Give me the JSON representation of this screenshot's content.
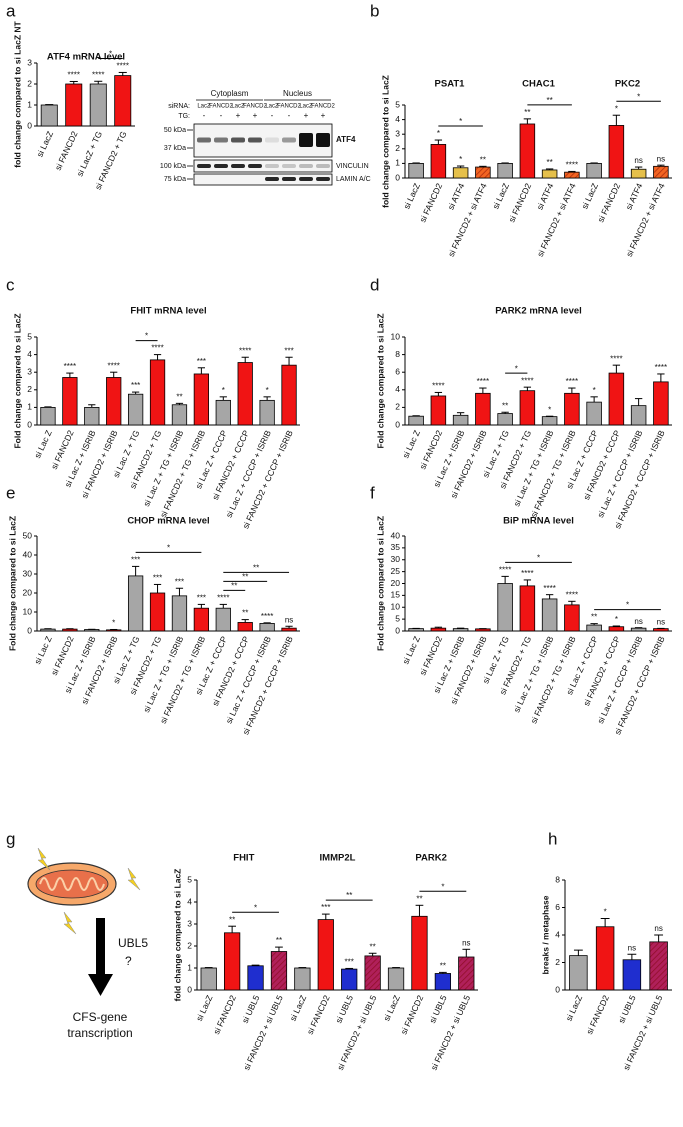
{
  "panel_labels": [
    "a",
    "b",
    "c",
    "d",
    "e",
    "f",
    "g",
    "h"
  ],
  "blot": {
    "compartments": [
      "Cytoplasm",
      "Nucleus"
    ],
    "sirna_label": "siRNA:",
    "tg_label": "TG:",
    "lanes": [
      "LacZ",
      "FANCD2",
      "LacZ",
      "FANCD2",
      "LacZ",
      "FANCD2",
      "LacZ",
      "FANCD2"
    ],
    "tg": [
      "-",
      "-",
      "+",
      "+",
      "-",
      "-",
      "+",
      "+"
    ],
    "markers": [
      "50 kDa",
      "37 kDa",
      "100 kDa",
      "75 kDa"
    ],
    "bands": [
      "ATF4",
      "VINCULIN",
      "LAMIN A/C"
    ]
  },
  "diagram": {
    "labels": [
      "UBL5",
      "?",
      "CFS-gene",
      "transcription"
    ]
  },
  "chart_data": [
    {
      "type": "bar",
      "title": "ATF4 mRNA level",
      "ylabel": "fold change compared to si LacZ NT",
      "categories": [
        "si LacZ",
        "si FANCD2",
        "si LacZ + TG",
        "si FANCD2 + TG"
      ],
      "values": [
        1,
        2.0,
        2.0,
        2.4
      ],
      "errors": [
        0.02,
        0.12,
        0.13,
        0.15
      ],
      "colors": [
        "#a6a6a6",
        "#f01414",
        "#a6a6a6",
        "#f01414"
      ],
      "hatched": [
        false,
        false,
        false,
        false
      ],
      "sig": [
        null,
        "****",
        "****",
        "****"
      ],
      "brackets": [
        {
          "from": 2,
          "to": 3,
          "label": "*"
        }
      ],
      "ylim": [
        0,
        3
      ],
      "yticks": [
        0,
        1,
        2,
        3
      ]
    },
    {
      "type": "bar",
      "groups": [
        "PSAT1",
        "CHAC1",
        "PKC2"
      ],
      "ylabel": "fold change compared to si LacZ",
      "categories": [
        "si LacZ",
        "si FANCD2",
        "si ATF4",
        "si FANCD2 + si ATF4",
        "si LacZ",
        "si FANCD2",
        "si ATF4",
        "si FANCD2 + si ATF4",
        "si LacZ",
        "si FANCD2",
        "si ATF4",
        "si FANCD2 + si ATF4"
      ],
      "values": [
        1,
        2.3,
        0.7,
        0.75,
        1,
        3.7,
        0.55,
        0.4,
        1,
        3.6,
        0.6,
        0.8
      ],
      "errors": [
        0.03,
        0.3,
        0.12,
        0.05,
        0.03,
        0.35,
        0.07,
        0.05,
        0.03,
        0.7,
        0.15,
        0.08
      ],
      "colors": [
        "#a6a6a6",
        "#f01414",
        "#e5c04b",
        "#f26522"
      ],
      "hatched": [
        false,
        false,
        false,
        true
      ],
      "sig": [
        null,
        "*",
        "*",
        "**",
        null,
        "**",
        "**",
        "****",
        null,
        "*",
        "ns",
        "ns"
      ],
      "brackets": [
        {
          "from": 1,
          "to": 3,
          "label": "*"
        },
        {
          "from": 5,
          "to": 7,
          "label": "**"
        },
        {
          "from": 9,
          "to": 11,
          "label": "*"
        }
      ],
      "ylim": [
        0,
        5
      ],
      "yticks": [
        0,
        1,
        2,
        3,
        4,
        5
      ]
    },
    {
      "type": "bar",
      "title": "FHIT mRNA level",
      "ylabel": "Fold change compared to si LacZ",
      "categories": [
        "si Lac Z",
        "si FANCD2",
        "si Lac Z + ISRIB",
        "si FANCD2 + ISRIB",
        "si Lac Z + TG",
        "si FANCD2 + TG",
        "si Lac Z + TG + ISRIB",
        "si FANCD2 + TG + ISRIB",
        "si Lac Z + CCCP",
        "si FANCD2 + CCCP",
        "si Lac Z + CCCP + ISRIB",
        "si FANCD2 + CCCP + ISRIB"
      ],
      "values": [
        1,
        2.7,
        1.0,
        2.7,
        1.75,
        3.7,
        1.15,
        2.9,
        1.4,
        3.55,
        1.4,
        3.4
      ],
      "errors": [
        0.03,
        0.25,
        0.15,
        0.3,
        0.12,
        0.3,
        0.08,
        0.35,
        0.2,
        0.3,
        0.2,
        0.45
      ],
      "colors": [
        "#a6a6a6",
        "#f01414"
      ],
      "hatched": [
        false,
        false
      ],
      "sig": [
        null,
        "****",
        null,
        "****",
        "***",
        "****",
        "**",
        "***",
        "*",
        "****",
        "*",
        "***"
      ],
      "brackets": [
        {
          "from": 4,
          "to": 5,
          "label": "*"
        }
      ],
      "ylim": [
        0,
        5
      ],
      "yticks": [
        0,
        1,
        2,
        3,
        4,
        5
      ]
    },
    {
      "type": "bar",
      "title": "PARK2 mRNA level",
      "ylabel": "Fold change compared to si LacZ",
      "categories": [
        "si Lac Z",
        "si FANCD2",
        "si Lac Z + ISRIB",
        "si FANCD2 + ISRIB",
        "si Lac Z + TG",
        "si FANCD2 + TG",
        "si Lac Z + TG + ISRIB",
        "si FANCD2 + TG + ISRIB",
        "si Lac Z + CCCP",
        "si FANCD2 + CCCP",
        "si Lac Z + CCCP + ISRIB",
        "si FANCD2 + CCCP + ISRIB"
      ],
      "values": [
        1,
        3.3,
        1.1,
        3.6,
        1.3,
        3.9,
        0.95,
        3.6,
        2.6,
        5.9,
        2.2,
        4.9
      ],
      "errors": [
        0.05,
        0.4,
        0.3,
        0.6,
        0.15,
        0.4,
        0.05,
        0.6,
        0.6,
        0.9,
        0.8,
        0.9
      ],
      "colors": [
        "#a6a6a6",
        "#f01414"
      ],
      "hatched": [
        false,
        false
      ],
      "sig": [
        null,
        "****",
        null,
        "****",
        "**",
        "****",
        "*",
        "****",
        "*",
        "****",
        null,
        "****"
      ],
      "brackets": [
        {
          "from": 4,
          "to": 5,
          "label": "*"
        }
      ],
      "ylim": [
        0,
        10
      ],
      "yticks": [
        0,
        2,
        4,
        6,
        8,
        10
      ]
    },
    {
      "type": "bar",
      "title": "CHOP mRNA level",
      "ylabel": "Fold change compared to si LacZ",
      "categories": [
        "si Lac Z",
        "si FANCD2",
        "si Lac Z + ISRIB",
        "si FANCD2 + ISRIB",
        "si Lac Z + TG",
        "si FANCD2 + TG",
        "si Lac Z + TG + ISRIB",
        "si FANCD2 + TG + ISRIB",
        "si Lac Z + CCCP",
        "si FANCD2 + CCCP",
        "si Lac Z + CCCP + ISRIB",
        "si FANCD2 + CCCP + ISRIB"
      ],
      "values": [
        1,
        1,
        0.8,
        0.6,
        29,
        20,
        18.5,
        12,
        12,
        4.5,
        4,
        1.5
      ],
      "errors": [
        0.2,
        0.2,
        0.1,
        0.2,
        5,
        4.5,
        4,
        2,
        2,
        1.5,
        0.3,
        1
      ],
      "colors": [
        "#a6a6a6",
        "#f01414"
      ],
      "hatched": [
        false,
        false
      ],
      "sig": [
        null,
        null,
        null,
        "*",
        "***",
        "***",
        "***",
        "***",
        "****",
        "**",
        "****",
        "ns"
      ],
      "brackets": [
        {
          "from": 4,
          "to": 7,
          "label": "*"
        },
        {
          "from": 8,
          "to": 9,
          "label": "**"
        },
        {
          "from": 8,
          "to": 10,
          "label": "**"
        },
        {
          "from": 8,
          "to": 11,
          "label": "**"
        }
      ],
      "ylim": [
        0,
        50
      ],
      "yticks": [
        0,
        10,
        20,
        30,
        40,
        50
      ]
    },
    {
      "type": "bar",
      "title": "BiP mRNA level",
      "ylabel": "Fold change compared to si LacZ",
      "categories": [
        "si Lac Z",
        "si FANCD2",
        "si Lac Z + ISRIB",
        "si FANCD2 + ISRIB",
        "si Lac Z + TG",
        "si FANCD2 + TG",
        "si Lac Z + TG + ISRIB",
        "si FANCD2 + TG + ISRIB",
        "si Lac Z + CCCP",
        "si FANCD2 + CCCP",
        "si Lac Z + CCCP + ISRIB",
        "si FANCD2 + CCCP + ISRIB"
      ],
      "values": [
        1,
        1.2,
        1,
        0.9,
        20,
        19,
        13.5,
        11,
        2.5,
        1.8,
        1.2,
        1
      ],
      "errors": [
        0.1,
        0.4,
        0.2,
        0.1,
        3,
        2.5,
        1.8,
        1.5,
        0.6,
        0.3,
        0.2,
        0.1
      ],
      "colors": [
        "#a6a6a6",
        "#f01414"
      ],
      "hatched": [
        false,
        false
      ],
      "sig": [
        null,
        null,
        null,
        null,
        "****",
        "****",
        "****",
        "****",
        "**",
        "*",
        "ns",
        "ns"
      ],
      "brackets": [
        {
          "from": 4,
          "to": 7,
          "label": "*"
        },
        {
          "from": 8,
          "to": 11,
          "label": "*"
        }
      ],
      "ylim": [
        0,
        40
      ],
      "yticks": [
        0,
        5,
        10,
        15,
        20,
        25,
        30,
        35,
        40
      ]
    },
    {
      "type": "bar",
      "groups": [
        "FHIT",
        "IMMP2L",
        "PARK2"
      ],
      "ylabel": "fold change compared to si LacZ",
      "categories": [
        "si LacZ",
        "si FANCD2",
        "si UBL5",
        "si FANCD2 + si UBL5",
        "si LacZ",
        "si FANCD2",
        "si UBL5",
        "si FANCD2 + si UBL5",
        "si LacZ",
        "si FANCD2",
        "si UBL5",
        "si FANCD2 + si UBL5"
      ],
      "values": [
        1,
        2.6,
        1.1,
        1.75,
        1,
        3.2,
        0.95,
        1.55,
        1,
        3.35,
        0.75,
        1.5
      ],
      "errors": [
        0.02,
        0.3,
        0.03,
        0.2,
        0.02,
        0.25,
        0.03,
        0.12,
        0.02,
        0.5,
        0.05,
        0.35
      ],
      "colors": [
        "#a6a6a6",
        "#f01414",
        "#1f2ecf",
        "#b0205a"
      ],
      "hatched": [
        false,
        false,
        false,
        true
      ],
      "sig": [
        null,
        "**",
        null,
        "**",
        null,
        "***",
        "***",
        "**",
        null,
        "**",
        "**",
        "ns"
      ],
      "brackets": [
        {
          "from": 1,
          "to": 3,
          "label": "*"
        },
        {
          "from": 5,
          "to": 7,
          "label": "**"
        },
        {
          "from": 9,
          "to": 11,
          "label": "*"
        }
      ],
      "ylim": [
        0,
        5
      ],
      "yticks": [
        0,
        1,
        2,
        3,
        4,
        5
      ]
    },
    {
      "type": "bar",
      "ylabel": "breaks / metaphase",
      "categories": [
        "si LacZ",
        "si FANCD2",
        "si UBL5",
        "si FANCD2 + si UBL5"
      ],
      "values": [
        2.5,
        4.6,
        2.2,
        3.5
      ],
      "errors": [
        0.4,
        0.6,
        0.4,
        0.5
      ],
      "colors": [
        "#a6a6a6",
        "#f01414",
        "#1f2ecf",
        "#b0205a"
      ],
      "hatched": [
        false,
        false,
        false,
        true
      ],
      "sig": [
        null,
        "*",
        "ns",
        "ns"
      ],
      "ylim": [
        0,
        8
      ],
      "yticks": [
        0,
        2,
        4,
        6,
        8
      ]
    }
  ]
}
